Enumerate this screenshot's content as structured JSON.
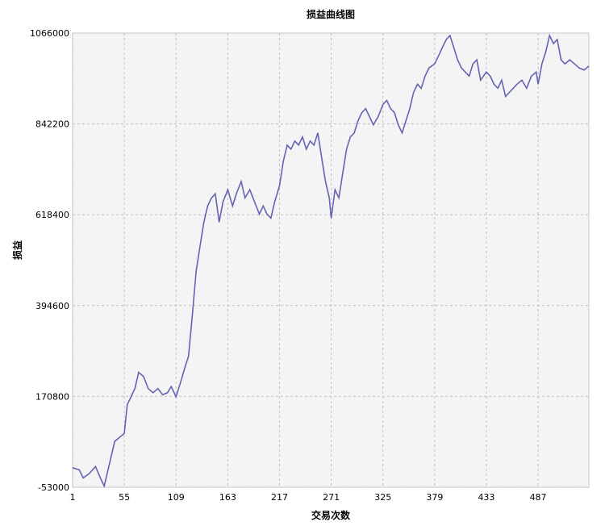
{
  "chart_data": {
    "type": "line",
    "title": "损益曲线图",
    "xlabel": "交易次数",
    "ylabel": "损益",
    "x_ticks": [
      "1",
      "55",
      "109",
      "163",
      "217",
      "271",
      "325",
      "379",
      "433",
      "487"
    ],
    "y_ticks": [
      "-53000",
      "170800",
      "394600",
      "618400",
      "842200",
      "1066000"
    ],
    "xlim": [
      1,
      540
    ],
    "ylim": [
      -53000,
      1066000
    ],
    "grid": true,
    "background_color": "#f4f4f4",
    "line_color": "#6464b4",
    "series": [
      {
        "x": [
          1,
          8,
          12,
          18,
          25,
          30,
          34,
          40,
          45,
          50,
          55,
          58,
          62,
          66,
          70,
          75,
          80,
          85,
          90,
          95,
          100,
          104,
          109,
          113,
          118,
          122,
          126,
          130,
          134,
          138,
          142,
          146,
          150,
          154,
          158,
          163,
          168,
          172,
          177,
          181,
          186,
          191,
          196,
          200,
          204,
          208,
          212,
          217,
          221,
          225,
          229,
          233,
          237,
          241,
          245,
          249,
          253,
          257,
          261,
          265,
          269,
          271,
          275,
          279,
          283,
          287,
          291,
          295,
          299,
          303,
          307,
          311,
          315,
          320,
          325,
          329,
          333,
          337,
          341,
          345,
          349,
          353,
          357,
          361,
          365,
          369,
          373,
          379,
          383,
          387,
          391,
          395,
          399,
          403,
          407,
          411,
          415,
          419,
          423,
          427,
          433,
          437,
          441,
          445,
          449,
          453,
          457,
          461,
          465,
          470,
          475,
          480,
          485,
          487,
          491,
          495,
          499,
          503,
          507,
          511,
          515,
          520,
          525,
          530,
          535,
          540
        ],
        "y": [
          -5000,
          -10000,
          -30000,
          -20000,
          -2000,
          -30000,
          -50000,
          10000,
          60000,
          70000,
          80000,
          150000,
          170000,
          190000,
          230000,
          220000,
          190000,
          180000,
          190000,
          175000,
          180000,
          195000,
          170000,
          200000,
          240000,
          270000,
          370000,
          480000,
          540000,
          600000,
          640000,
          660000,
          670000,
          600000,
          650000,
          680000,
          640000,
          670000,
          700000,
          660000,
          680000,
          650000,
          620000,
          640000,
          620000,
          610000,
          650000,
          690000,
          750000,
          790000,
          780000,
          800000,
          790000,
          810000,
          780000,
          800000,
          790000,
          820000,
          760000,
          700000,
          660000,
          610000,
          680000,
          660000,
          720000,
          780000,
          810000,
          820000,
          850000,
          870000,
          880000,
          860000,
          840000,
          860000,
          890000,
          900000,
          880000,
          870000,
          840000,
          820000,
          850000,
          880000,
          920000,
          940000,
          930000,
          960000,
          980000,
          990000,
          1010000,
          1030000,
          1050000,
          1060000,
          1030000,
          1000000,
          980000,
          970000,
          960000,
          990000,
          1000000,
          950000,
          970000,
          960000,
          940000,
          930000,
          950000,
          910000,
          920000,
          930000,
          940000,
          950000,
          930000,
          960000,
          970000,
          940000,
          990000,
          1020000,
          1060000,
          1040000,
          1050000,
          1000000,
          990000,
          1000000,
          990000,
          980000,
          975000,
          985000
        ]
      }
    ]
  }
}
